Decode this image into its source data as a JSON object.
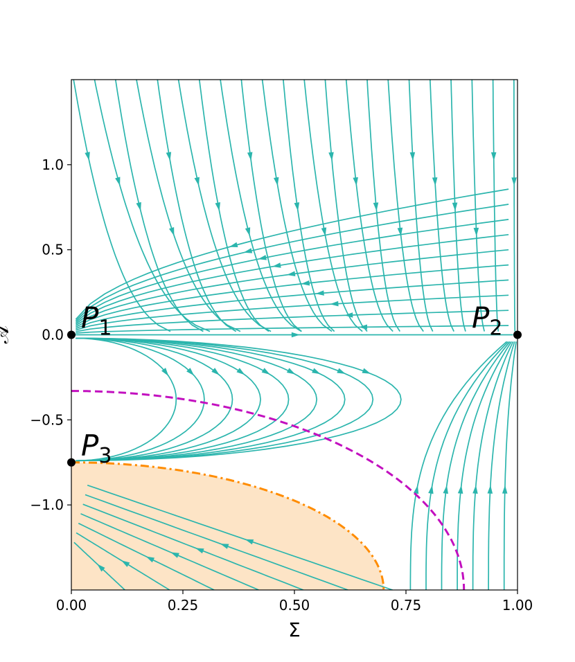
{
  "chart_data": {
    "type": "streamplot",
    "xlabel": "Σ",
    "ylabel": "𝒜",
    "xlim": [
      0.0,
      1.0
    ],
    "ylim": [
      -1.5,
      1.5
    ],
    "x_ticks": [
      0.0,
      0.25,
      0.5,
      0.75,
      1.0
    ],
    "x_tick_labels": [
      "0.00",
      "0.25",
      "0.50",
      "0.75",
      "1.00"
    ],
    "y_ticks": [
      -1.0,
      -0.5,
      0.0,
      0.5,
      1.0
    ],
    "y_tick_labels": [
      "−1.0",
      "−0.5",
      "0.0",
      "0.5",
      "1.0"
    ],
    "grid": false,
    "colors": {
      "streamlines": "#2bb5ad",
      "dashed_curve": "#c20fbf",
      "dashdot_curve": "#ff8c00",
      "shaded_region": "#fde4c6",
      "points": "#000000"
    },
    "fixed_points": [
      {
        "name": "P",
        "sub": "1",
        "x": 0.0,
        "y": 0.0
      },
      {
        "name": "P",
        "sub": "2",
        "x": 1.0,
        "y": 0.0
      },
      {
        "name": "P",
        "sub": "3",
        "x": 0.0,
        "y": -0.75
      }
    ],
    "curves": [
      {
        "style": "dashed",
        "x0": 0.0,
        "y0": -0.33,
        "x_end": 0.88,
        "y_end": -1.5
      },
      {
        "style": "dash-dot",
        "x0": 0.0,
        "y0": -0.75,
        "x_end": 0.7,
        "y_end": -1.5
      }
    ],
    "shaded_region": "below dash-dot curve"
  }
}
